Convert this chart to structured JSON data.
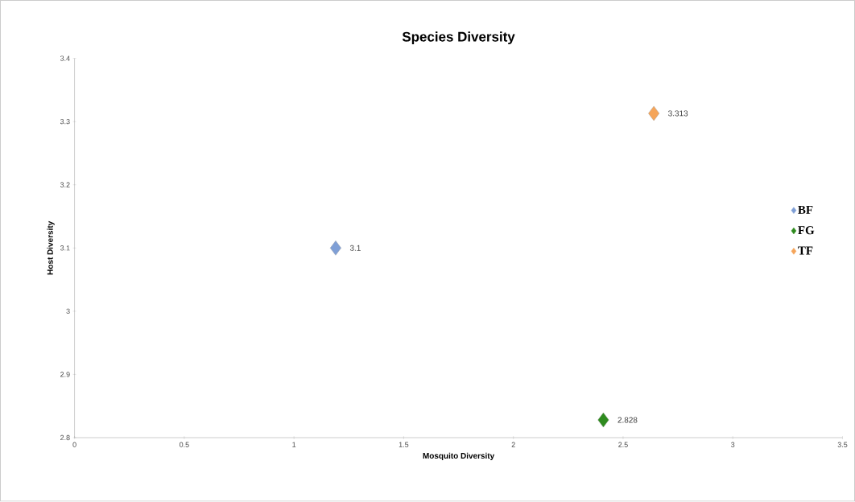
{
  "chart_data": {
    "type": "scatter",
    "title": "Species Diversity",
    "xlabel": "Mosquito Diversity",
    "ylabel": "Host Diversity",
    "series": [
      {
        "name": "BF",
        "color": "#7f9fd6",
        "x": [
          1.19
        ],
        "values": [
          3.1
        ],
        "value_labels": [
          "3.1"
        ]
      },
      {
        "name": "FG",
        "color": "#2e8b1e",
        "x": [
          2.41
        ],
        "values": [
          2.828
        ],
        "value_labels": [
          "2.828"
        ]
      },
      {
        "name": "TF",
        "color": "#f5a55a",
        "x": [
          2.64
        ],
        "values": [
          3.313
        ],
        "value_labels": [
          "3.313"
        ]
      }
    ],
    "xlim": [
      0,
      3.5
    ],
    "ylim": [
      2.8,
      3.4
    ],
    "xticks": [
      0,
      0.5,
      1,
      1.5,
      2,
      2.5,
      3,
      3.5
    ],
    "yticks": [
      2.8,
      2.9,
      3,
      3.1,
      3.2,
      3.3,
      3.4
    ],
    "marker": "diamond",
    "legend": "right"
  }
}
